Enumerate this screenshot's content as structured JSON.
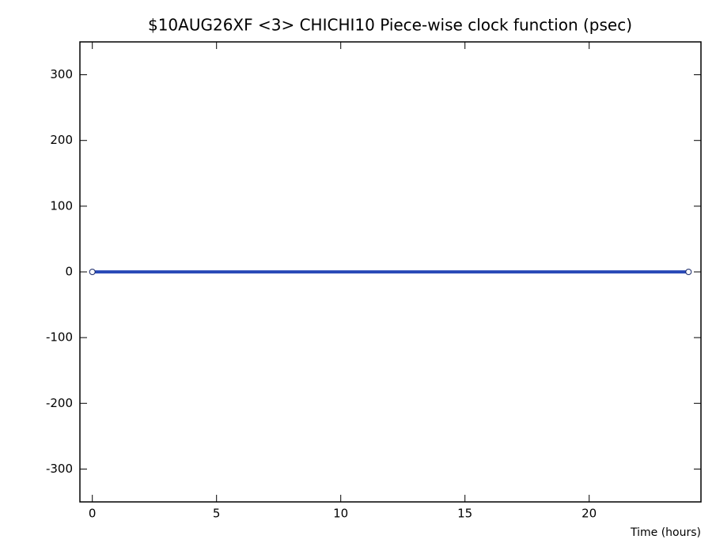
{
  "chart_data": {
    "type": "line",
    "title": "$10AUG26XF <3>  CHICHI10  Piece-wise clock function (psec)",
    "x_label": "Time (hours)",
    "x": [
      0,
      24
    ],
    "series": [
      {
        "values": [
          0,
          0
        ],
        "color": "#2b4bb8"
      }
    ],
    "xlim": [
      -0.5,
      24.5
    ],
    "xticks": [
      0,
      5,
      10,
      15,
      20
    ],
    "ylim": [
      -350,
      350
    ],
    "yticks": [
      -300,
      -200,
      -100,
      0,
      100,
      200,
      300
    ],
    "grid": false
  }
}
